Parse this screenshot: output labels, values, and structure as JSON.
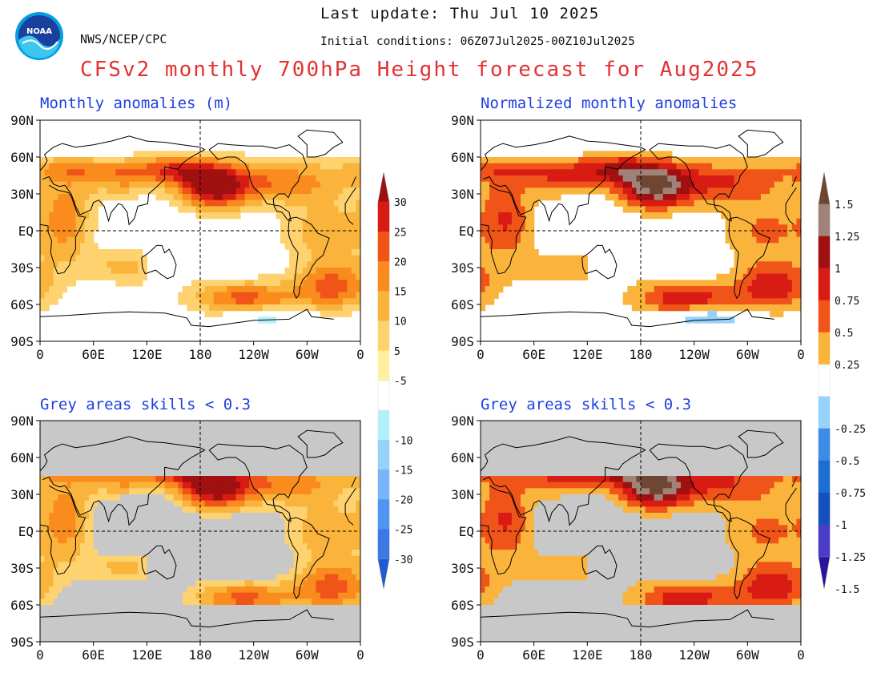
{
  "header": {
    "agency": "NWS/NCEP/CPC",
    "last_update": "Last update: Thu Jul 10 2025",
    "initial_conditions": "Initial conditions: 06Z07Jul2025-00Z10Jul2025",
    "title": "CFSv2 monthly 700hPa Height forecast for Aug2025",
    "logo_text": "NOAA"
  },
  "axes": {
    "lat_labels": [
      "90N",
      "60N",
      "30N",
      "EQ",
      "30S",
      "60S",
      "90S"
    ],
    "lon_labels": [
      "0",
      "60E",
      "120E",
      "180",
      "120W",
      "60W",
      "0"
    ],
    "lat_values": [
      90,
      60,
      30,
      0,
      -30,
      -60,
      -90
    ],
    "lon_values": [
      0,
      60,
      120,
      180,
      240,
      300,
      360
    ]
  },
  "panels": [
    {
      "id": "anomaly",
      "title": "Monthly anomalies (m)",
      "units": "m",
      "kind": "raw",
      "skill_mask": false
    },
    {
      "id": "normalized",
      "title": "Normalized monthly anomalies",
      "units": "",
      "kind": "norm",
      "skill_mask": false
    },
    {
      "id": "anomaly_masked",
      "title": "Grey areas skills < 0.3",
      "units": "m",
      "kind": "raw",
      "skill_mask": true
    },
    {
      "id": "normalized_masked",
      "title": "Grey areas skills < 0.3",
      "units": "",
      "kind": "norm",
      "skill_mask": true
    }
  ],
  "colorbars": [
    {
      "id": "height-anomaly-scale",
      "labels": [
        "30",
        "25",
        "20",
        "15",
        "10",
        "5",
        "-5",
        "-10",
        "-15",
        "-20",
        "-25",
        "-30"
      ],
      "colors": [
        "#a01010",
        "#d81c14",
        "#f05418",
        "#fa8c1e",
        "#fab43c",
        "#fed26e",
        "#fff0a0",
        "#ffffff",
        "#b4f0fa",
        "#96d2fa",
        "#78b4fa",
        "#5096f0",
        "#3c78e6",
        "#1e5ad2"
      ]
    },
    {
      "id": "normalized-anomaly-scale",
      "labels": [
        "1.5",
        "1.25",
        "1",
        "0.75",
        "0.5",
        "0.25",
        "-0.25",
        "-0.5",
        "-0.75",
        "-1",
        "-1.25",
        "-1.5"
      ],
      "colors": [
        "#6e4632",
        "#a08278",
        "#a01010",
        "#d81c14",
        "#f05418",
        "#fab43c",
        "#ffffff",
        "#96d2fa",
        "#3c8ce6",
        "#1e6ed2",
        "#1450be",
        "#4b3cc8",
        "#2814a0"
      ]
    }
  ],
  "map": {
    "ocean_color": "#ffffff",
    "skill_mask_color": "#c8c8c8",
    "coast_color": "#000000"
  }
}
